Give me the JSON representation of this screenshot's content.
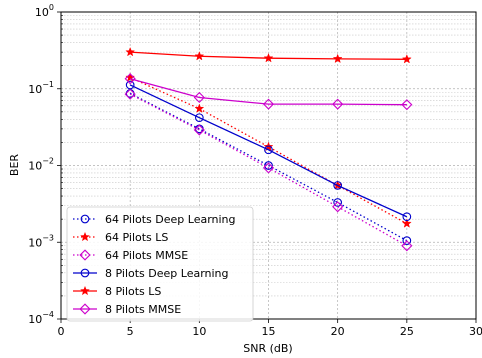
{
  "chart_data": {
    "type": "line",
    "title": "",
    "xlabel": "SNR (dB)",
    "ylabel": "BER",
    "xlim": [
      0,
      30
    ],
    "ylim": [
      0.0001,
      1
    ],
    "yscale": "log",
    "grid": "on (major and minor)",
    "legend_position": "lower-left",
    "x_ticks": [
      "0",
      "5",
      "10",
      "15",
      "20",
      "25",
      "30"
    ],
    "y_ticks": [
      {
        "base": "10",
        "exp": "0"
      },
      {
        "base": "10",
        "exp": "−1"
      },
      {
        "base": "10",
        "exp": "−2"
      },
      {
        "base": "10",
        "exp": "−3"
      },
      {
        "base": "10",
        "exp": "−4"
      }
    ],
    "x": [
      5,
      10,
      15,
      20,
      25
    ],
    "series": [
      {
        "name": "64 Pilots Deep Learning",
        "values": [
          0.087,
          0.03,
          0.01,
          0.0033,
          0.00105
        ],
        "color": "#0000cc",
        "line_style": "dotted",
        "marker": "circle"
      },
      {
        "name": "64 Pilots LS",
        "values": [
          0.14,
          0.055,
          0.0175,
          0.0055,
          0.00175
        ],
        "color": "#ff0000",
        "line_style": "dotted",
        "marker": "star"
      },
      {
        "name": "64 Pilots MMSE",
        "values": [
          0.085,
          0.029,
          0.0093,
          0.0029,
          0.0009
        ],
        "color": "#cc00cc",
        "line_style": "dotted",
        "marker": "diamond"
      },
      {
        "name": "8 Pilots Deep Learning",
        "values": [
          0.112,
          0.042,
          0.016,
          0.0055,
          0.00215
        ],
        "color": "#0000cc",
        "line_style": "solid",
        "marker": "circle"
      },
      {
        "name": "8 Pilots LS",
        "values": [
          0.3,
          0.265,
          0.25,
          0.245,
          0.242
        ],
        "color": "#ff0000",
        "line_style": "solid",
        "marker": "star"
      },
      {
        "name": "8 Pilots MMSE",
        "values": [
          0.135,
          0.077,
          0.063,
          0.063,
          0.062
        ],
        "color": "#cc00cc",
        "line_style": "solid",
        "marker": "diamond"
      }
    ]
  }
}
